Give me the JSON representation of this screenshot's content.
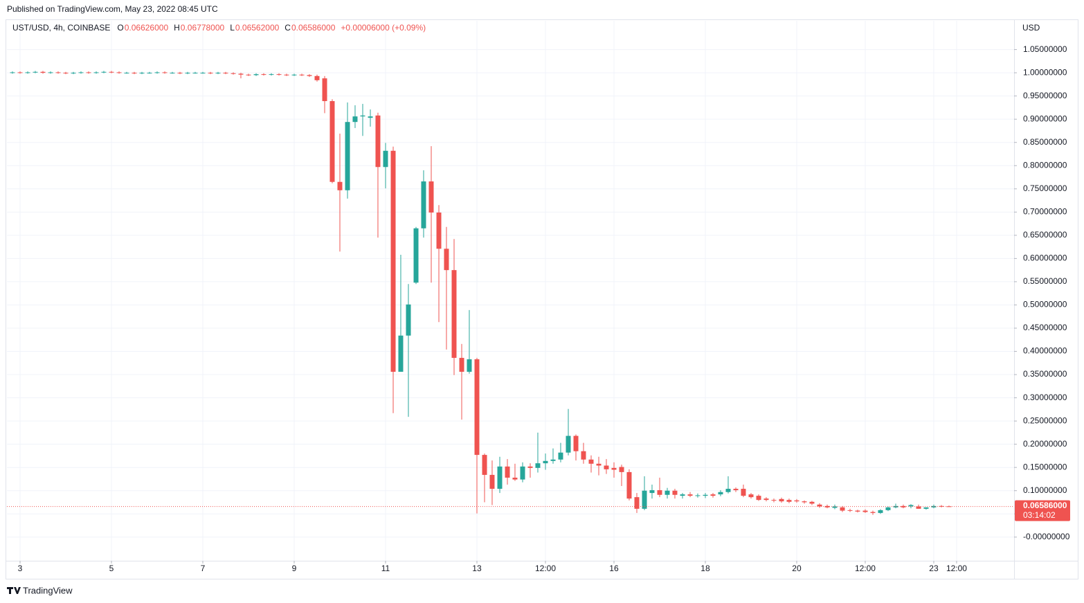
{
  "header": {
    "published": "Published on TradingView.com, May 23, 2022 08:45 UTC"
  },
  "chart_data": {
    "type": "candlestick",
    "symbol": "UST/USD, 4h, COINBASE",
    "ohlc_legend": [
      {
        "key": "O",
        "value": "0.06626000"
      },
      {
        "key": "H",
        "value": "0.06778000"
      },
      {
        "key": "L",
        "value": "0.06562000"
      },
      {
        "key": "C",
        "value": "0.06586000"
      }
    ],
    "change": "+0.00006000 (+0.09%)",
    "y_axis_label": "USD",
    "up_color": "#26a69a",
    "down_color": "#ef5350",
    "grid": true,
    "xlim": [
      2.712,
      24.758
    ],
    "ylim": [
      -0.051,
      1.112
    ],
    "xticks": [
      3,
      5,
      7,
      9,
      11,
      13,
      {
        "value": 14.5,
        "label": "12:00"
      },
      16,
      18,
      20,
      {
        "value": 21.5,
        "label": "12:00"
      },
      23,
      {
        "value": 23.5,
        "label": "12:00"
      }
    ],
    "yticks": [
      {
        "value": 0,
        "label": "-0.00000000"
      },
      {
        "value": 0.05,
        "label": "0.05000000"
      },
      {
        "value": 0.1,
        "label": "0.10000000"
      },
      {
        "value": 0.15,
        "label": "0.15000000"
      },
      {
        "value": 0.2,
        "label": "0.20000000"
      },
      {
        "value": 0.25,
        "label": "0.25000000"
      },
      {
        "value": 0.3,
        "label": "0.30000000"
      },
      {
        "value": 0.35,
        "label": "0.35000000"
      },
      {
        "value": 0.4,
        "label": "0.40000000"
      },
      {
        "value": 0.45,
        "label": "0.45000000"
      },
      {
        "value": 0.5,
        "label": "0.50000000"
      },
      {
        "value": 0.55,
        "label": "0.55000000"
      },
      {
        "value": 0.6,
        "label": "0.60000000"
      },
      {
        "value": 0.65,
        "label": "0.65000000"
      },
      {
        "value": 0.7,
        "label": "0.70000000"
      },
      {
        "value": 0.75,
        "label": "0.75000000"
      },
      {
        "value": 0.8,
        "label": "0.80000000"
      },
      {
        "value": 0.85,
        "label": "0.85000000"
      },
      {
        "value": 0.9,
        "label": "0.90000000"
      },
      {
        "value": 0.95,
        "label": "0.95000000"
      },
      {
        "value": 1,
        "label": "1.00000000"
      },
      {
        "value": 1.05,
        "label": "1.05000000"
      }
    ],
    "x": [
      2.833,
      3,
      3.167,
      3.333,
      3.5,
      3.667,
      3.833,
      4,
      4.167,
      4.333,
      4.5,
      4.667,
      4.833,
      5,
      5.167,
      5.333,
      5.5,
      5.667,
      5.833,
      6,
      6.167,
      6.333,
      6.5,
      6.667,
      6.833,
      7,
      7.167,
      7.333,
      7.5,
      7.667,
      7.833,
      8,
      8.167,
      8.333,
      8.5,
      8.667,
      8.833,
      9,
      9.167,
      9.333,
      9.5,
      9.667,
      9.833,
      10,
      10.167,
      10.333,
      10.5,
      10.667,
      10.833,
      11,
      11.167,
      11.333,
      11.5,
      11.667,
      11.833,
      12,
      12.167,
      12.333,
      12.5,
      12.667,
      12.833,
      13,
      13.167,
      13.333,
      13.5,
      13.667,
      13.833,
      14,
      14.167,
      14.333,
      14.5,
      14.667,
      14.833,
      15,
      15.167,
      15.333,
      15.5,
      15.667,
      15.833,
      16,
      16.167,
      16.333,
      16.5,
      16.667,
      16.833,
      17,
      17.167,
      17.333,
      17.5,
      17.667,
      17.833,
      18,
      18.167,
      18.333,
      18.5,
      18.667,
      18.833,
      19,
      19.167,
      19.333,
      19.5,
      19.667,
      19.833,
      20,
      20.167,
      20.333,
      20.5,
      20.667,
      20.833,
      21,
      21.167,
      21.333,
      21.5,
      21.667,
      21.833,
      22,
      22.167,
      22.333,
      22.5,
      22.667,
      22.833,
      23,
      23.167,
      23.333
    ],
    "open": [
      1.0,
      1.001,
      1.0,
      1.001,
      1.002,
      1.0,
      1.001,
      1.0,
      0.999,
      1.0,
      1.001,
      1.0,
      1.001,
      1.002,
      1.001,
      1.0,
      1.0,
      0.999,
      1.0,
      1.0,
      1.001,
      1.0,
      1.0,
      0.999,
      1.0,
      1.0,
      1.0,
      0.999,
      1.0,
      0.999,
      0.998,
      0.996,
      0.995,
      0.997,
      0.996,
      0.997,
      0.996,
      0.995,
      0.996,
      0.995,
      0.993,
      0.988,
      0.939,
      0.765,
      0.747,
      0.894,
      0.906,
      0.903,
      0.908,
      0.797,
      0.832,
      0.356,
      0.434,
      0.548,
      0.665,
      0.766,
      0.699,
      0.621,
      0.575,
      0.386,
      0.356,
      0.383,
      0.177,
      0.134,
      0.104,
      0.152,
      0.128,
      0.124,
      0.152,
      0.149,
      0.159,
      0.164,
      0.167,
      0.182,
      0.218,
      0.185,
      0.167,
      0.158,
      0.154,
      0.149,
      0.151,
      0.14,
      0.086,
      0.061,
      0.095,
      0.101,
      0.091,
      0.1,
      0.089,
      0.092,
      0.089,
      0.089,
      0.092,
      0.092,
      0.097,
      0.104,
      0.104,
      0.092,
      0.089,
      0.083,
      0.08,
      0.082,
      0.08,
      0.079,
      0.077,
      0.076,
      0.07,
      0.067,
      0.063,
      0.064,
      0.058,
      0.057,
      0.057,
      0.054,
      0.052,
      0.058,
      0.064,
      0.067,
      0.066,
      0.066,
      0.061,
      0.064,
      0.067,
      0.06626
    ],
    "high": [
      1.003,
      1.003,
      1.003,
      1.004,
      1.004,
      1.003,
      1.003,
      1.002,
      1.002,
      1.003,
      1.003,
      1.003,
      1.004,
      1.004,
      1.003,
      1.002,
      1.002,
      1.002,
      1.002,
      1.003,
      1.003,
      1.002,
      1.002,
      1.002,
      1.002,
      1.002,
      1.002,
      1.002,
      1.002,
      1.001,
      1.0,
      0.998,
      0.999,
      0.999,
      0.999,
      0.999,
      0.998,
      0.998,
      0.998,
      0.997,
      0.996,
      0.993,
      0.943,
      0.869,
      0.936,
      0.93,
      0.933,
      0.921,
      0.914,
      0.849,
      0.841,
      0.608,
      0.545,
      0.668,
      0.79,
      0.842,
      0.715,
      0.668,
      0.642,
      0.416,
      0.489,
      0.386,
      0.18,
      0.165,
      0.173,
      0.168,
      0.158,
      0.161,
      0.159,
      0.225,
      0.18,
      0.191,
      0.203,
      0.276,
      0.221,
      0.203,
      0.176,
      0.173,
      0.168,
      0.161,
      0.156,
      0.146,
      0.095,
      0.131,
      0.113,
      0.128,
      0.106,
      0.104,
      0.095,
      0.097,
      0.094,
      0.095,
      0.095,
      0.101,
      0.131,
      0.107,
      0.113,
      0.095,
      0.092,
      0.086,
      0.083,
      0.085,
      0.083,
      0.082,
      0.079,
      0.078,
      0.073,
      0.07,
      0.07,
      0.067,
      0.061,
      0.059,
      0.06,
      0.057,
      0.06,
      0.066,
      0.072,
      0.07,
      0.071,
      0.07,
      0.064,
      0.07,
      0.069,
      0.06778
    ],
    "low": [
      0.998,
      0.998,
      0.998,
      0.999,
      0.998,
      0.998,
      0.998,
      0.997,
      0.997,
      0.998,
      0.998,
      0.998,
      0.999,
      0.999,
      0.998,
      0.998,
      0.997,
      0.997,
      0.998,
      0.998,
      0.998,
      0.998,
      0.997,
      0.997,
      0.998,
      0.998,
      0.997,
      0.997,
      0.997,
      0.996,
      0.988,
      0.993,
      0.993,
      0.994,
      0.994,
      0.994,
      0.993,
      0.993,
      0.993,
      0.991,
      0.981,
      0.913,
      0.762,
      0.615,
      0.729,
      0.881,
      0.864,
      0.884,
      0.645,
      0.751,
      0.267,
      0.356,
      0.259,
      0.545,
      0.645,
      0.548,
      0.463,
      0.404,
      0.349,
      0.253,
      0.352,
      0.051,
      0.075,
      0.069,
      0.095,
      0.113,
      0.121,
      0.118,
      0.128,
      0.139,
      0.145,
      0.158,
      0.161,
      0.176,
      0.165,
      0.158,
      0.139,
      0.133,
      0.136,
      0.128,
      0.11,
      0.079,
      0.052,
      0.058,
      0.083,
      0.086,
      0.083,
      0.083,
      0.083,
      0.086,
      0.085,
      0.084,
      0.085,
      0.088,
      0.094,
      0.097,
      0.086,
      0.083,
      0.078,
      0.077,
      0.075,
      0.074,
      0.073,
      0.074,
      0.072,
      0.069,
      0.063,
      0.062,
      0.06,
      0.054,
      0.054,
      0.053,
      0.052,
      0.048,
      0.05,
      0.056,
      0.062,
      0.062,
      0.062,
      0.061,
      0.059,
      0.062,
      0.064,
      0.06562
    ],
    "close": [
      1.001,
      1.0,
      1.001,
      1.002,
      1.0,
      1.001,
      1.0,
      0.999,
      1.0,
      1.001,
      1.0,
      1.001,
      1.002,
      1.001,
      1.0,
      1.0,
      0.999,
      1.0,
      1.0,
      1.001,
      1.0,
      1.0,
      0.999,
      1.0,
      1.0,
      1.0,
      0.999,
      1.0,
      0.999,
      0.998,
      0.996,
      0.995,
      0.997,
      0.996,
      0.997,
      0.996,
      0.995,
      0.996,
      0.995,
      0.993,
      0.984,
      0.939,
      0.765,
      0.747,
      0.894,
      0.906,
      0.908,
      0.906,
      0.797,
      0.832,
      0.356,
      0.434,
      0.501,
      0.665,
      0.766,
      0.699,
      0.621,
      0.575,
      0.386,
      0.356,
      0.383,
      0.177,
      0.134,
      0.104,
      0.152,
      0.128,
      0.124,
      0.152,
      0.149,
      0.159,
      0.164,
      0.167,
      0.182,
      0.218,
      0.185,
      0.167,
      0.158,
      0.154,
      0.146,
      0.145,
      0.14,
      0.083,
      0.061,
      0.1,
      0.101,
      0.091,
      0.1,
      0.091,
      0.092,
      0.089,
      0.09,
      0.091,
      0.089,
      0.097,
      0.104,
      0.101,
      0.089,
      0.086,
      0.08,
      0.08,
      0.079,
      0.077,
      0.076,
      0.077,
      0.075,
      0.072,
      0.066,
      0.064,
      0.066,
      0.057,
      0.057,
      0.055,
      0.054,
      0.052,
      0.058,
      0.064,
      0.067,
      0.064,
      0.069,
      0.061,
      0.064,
      0.067,
      0.066,
      0.06586
    ],
    "last_price": {
      "value": 0.06586,
      "label": "0.06586000",
      "countdown": "03:14:02"
    }
  },
  "footer": {
    "brand": "TradingView"
  }
}
